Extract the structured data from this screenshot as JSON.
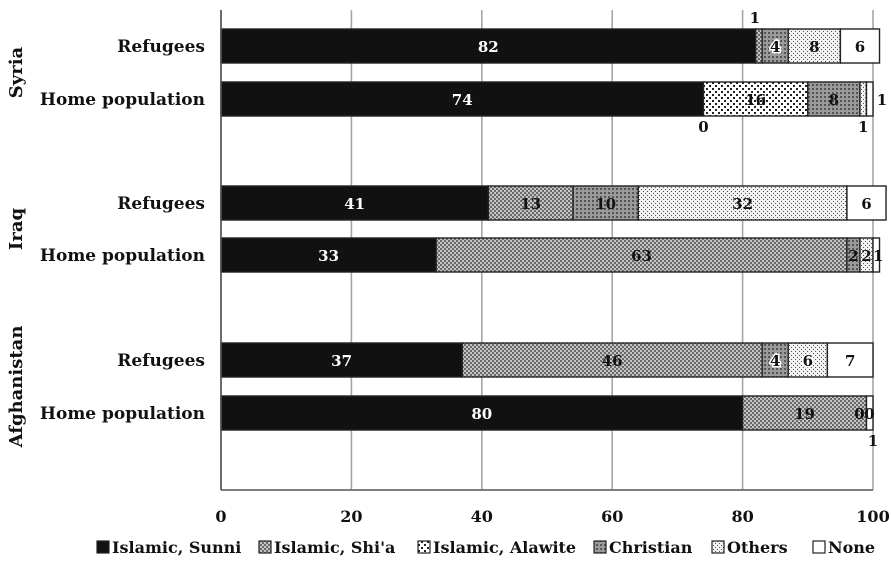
{
  "chart_data": {
    "type": "bar",
    "orientation": "horizontal",
    "stacked": true,
    "xlim": [
      0,
      100
    ],
    "xticks": [
      "0",
      "20",
      "40",
      "60",
      "80",
      "100"
    ],
    "grid": "vertical",
    "legend_position": "bottom",
    "groups": [
      {
        "name": "Syria",
        "rows": [
          {
            "label": "Refugees",
            "values": [
              82,
              1,
              0,
              4,
              8,
              6
            ]
          },
          {
            "label": "Home population",
            "values": [
              74,
              0,
              16,
              8,
              1,
              1
            ]
          }
        ]
      },
      {
        "name": "Iraq",
        "rows": [
          {
            "label": "Refugees",
            "values": [
              41,
              13,
              0,
              10,
              32,
              6
            ]
          },
          {
            "label": "Home population",
            "values": [
              33,
              63,
              0,
              2,
              2,
              1
            ]
          }
        ]
      },
      {
        "name": "Afghanistan",
        "rows": [
          {
            "label": "Refugees",
            "values": [
              37,
              46,
              0,
              4,
              6,
              7
            ]
          },
          {
            "label": "Home population",
            "values": [
              80,
              19,
              0,
              0,
              0,
              1
            ]
          }
        ]
      }
    ],
    "series": [
      {
        "name": "Islamic, Sunni",
        "color": "#111111",
        "pattern": "solid"
      },
      {
        "name": "Islamic, Shi'a",
        "color": "#b5b5b5",
        "pattern": "cross"
      },
      {
        "name": "Islamic, Alawite",
        "color": "#ffffff",
        "pattern": "dots-coarse"
      },
      {
        "name": "Christian",
        "color": "#a0a0a0",
        "pattern": "checker"
      },
      {
        "name": "Others",
        "color": "#e6e6e6",
        "pattern": "dots-fine"
      },
      {
        "name": "None",
        "color": "#ffffff",
        "pattern": "blank"
      }
    ]
  }
}
